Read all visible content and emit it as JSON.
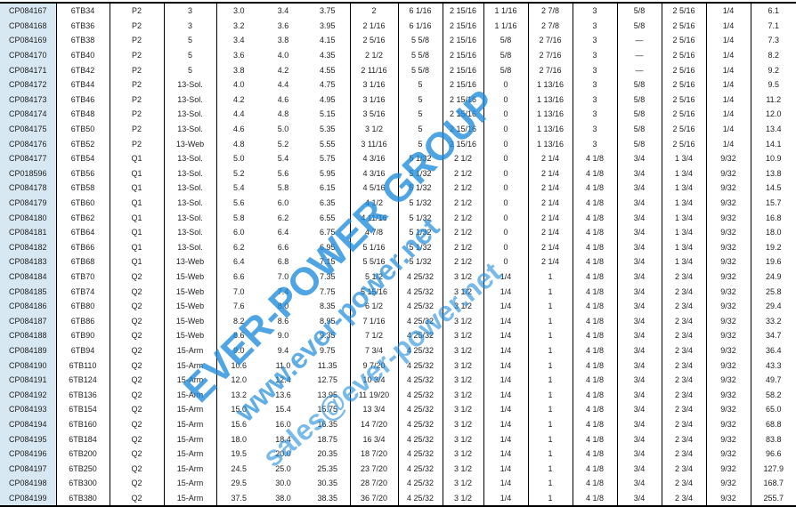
{
  "watermark": {
    "line1": "EVER-POWER GROUP",
    "line2": "www.ever-power.net",
    "line3": "sales@ever-power.net",
    "color": "#1e8cdc"
  },
  "rows": [
    [
      "CP084167",
      "6TB34",
      "P2",
      "3",
      "3.0",
      "3.4",
      "3.75",
      "2",
      "6  1/16",
      "2 15/16",
      "1  1/16",
      "2 7/8",
      "3",
      "5/8",
      "2  5/16",
      "1/4",
      "6.1"
    ],
    [
      "CP084168",
      "6TB36",
      "P2",
      "3",
      "3.2",
      "3.6",
      "3.95",
      "2  1/16",
      "6  1/16",
      "2 15/16",
      "1  1/16",
      "2 7/8",
      "3",
      "5/8",
      "2  5/16",
      "1/4",
      "7.1"
    ],
    [
      "CP084169",
      "6TB38",
      "P2",
      "5",
      "3.4",
      "3.8",
      "4.15",
      "2  5/16",
      "5 5/8",
      "2 15/16",
      "5/8",
      "2  7/16",
      "3",
      "—",
      "2  5/16",
      "1/4",
      "7.3"
    ],
    [
      "CP084170",
      "6TB40",
      "P2",
      "5",
      "3.6",
      "4.0",
      "4.35",
      "2 1/2",
      "5 5/8",
      "2 15/16",
      "5/8",
      "2  7/16",
      "3",
      "—",
      "2  5/16",
      "1/4",
      "8.2"
    ],
    [
      "CP084171",
      "6TB42",
      "P2",
      "5",
      "3.8",
      "4.2",
      "4.55",
      "2 11/16",
      "5 5/8",
      "2 15/16",
      "5/8",
      "2  7/16",
      "3",
      "—",
      "2  5/16",
      "1/4",
      "9.2"
    ],
    [
      "CP084172",
      "6TB44",
      "P2",
      "13-Sol.",
      "4.0",
      "4.4",
      "4.75",
      "3  1/16",
      "5",
      "2 15/16",
      "0",
      "1 13/16",
      "3",
      "5/8",
      "2  5/16",
      "1/4",
      "9.5"
    ],
    [
      "CP084173",
      "6TB46",
      "P2",
      "13-Sol.",
      "4.2",
      "4.6",
      "4.95",
      "3  1/16",
      "5",
      "2 15/16",
      "0",
      "1 13/16",
      "3",
      "5/8",
      "2  5/16",
      "1/4",
      "11.2"
    ],
    [
      "CP084174",
      "6TB48",
      "P2",
      "13-Sol.",
      "4.4",
      "4.8",
      "5.15",
      "3  5/16",
      "5",
      "2 15/16",
      "0",
      "1 13/16",
      "3",
      "5/8",
      "2  5/16",
      "1/4",
      "12.0"
    ],
    [
      "CP084175",
      "6TB50",
      "P2",
      "13-Sol.",
      "4.6",
      "5.0",
      "5.35",
      "3 1/2",
      "5",
      "2 15/16",
      "0",
      "1 13/16",
      "3",
      "5/8",
      "2  5/16",
      "1/4",
      "13.4"
    ],
    [
      "CP084176",
      "6TB52",
      "P2",
      "13-Web",
      "4.8",
      "5.2",
      "5.55",
      "3 11/16",
      "5",
      "2 15/16",
      "0",
      "1 13/16",
      "3",
      "5/8",
      "2  5/16",
      "1/4",
      "14.1"
    ],
    [
      "CP084177",
      "6TB54",
      "Q1",
      "13-Sol.",
      "5.0",
      "5.4",
      "5.75",
      "4  3/16",
      "5  1/32",
      "2 1/2",
      "0",
      "2 1/4",
      "4 1/8",
      "3/4",
      "1 3/4",
      "9/32",
      "10.9"
    ],
    [
      "CP018596",
      "6TB56",
      "Q1",
      "13-Sol.",
      "5.2",
      "5.6",
      "5.95",
      "4  3/16",
      "5  1/32",
      "2 1/2",
      "0",
      "2 1/4",
      "4 1/8",
      "3/4",
      "1 3/4",
      "9/32",
      "13.8"
    ],
    [
      "CP084178",
      "6TB58",
      "Q1",
      "13-Sol.",
      "5.4",
      "5.8",
      "6.15",
      "4  5/16",
      "5  1/32",
      "2 1/2",
      "0",
      "2 1/4",
      "4 1/8",
      "3/4",
      "1 3/4",
      "9/32",
      "14.5"
    ],
    [
      "CP084179",
      "6TB60",
      "Q1",
      "13-Sol.",
      "5.6",
      "6.0",
      "6.35",
      "4 1/2",
      "5  1/32",
      "2 1/2",
      "0",
      "2 1/4",
      "4 1/8",
      "3/4",
      "1 3/4",
      "9/32",
      "15.7"
    ],
    [
      "CP084180",
      "6TB62",
      "Q1",
      "13-Sol.",
      "5.8",
      "6.2",
      "6.55",
      "4 11/16",
      "5  1/32",
      "2 1/2",
      "0",
      "2 1/4",
      "4 1/8",
      "3/4",
      "1 3/4",
      "9/32",
      "16.8"
    ],
    [
      "CP084181",
      "6TB64",
      "Q1",
      "13-Sol.",
      "6.0",
      "6.4",
      "6.75",
      "4  7/8",
      "5  1/32",
      "2 1/2",
      "0",
      "2 1/4",
      "4 1/8",
      "3/4",
      "1 3/4",
      "9/32",
      "18.0"
    ],
    [
      "CP084182",
      "6TB66",
      "Q1",
      "13-Sol.",
      "6.2",
      "6.6",
      "6.95",
      "5  1/16",
      "5  1/32",
      "2 1/2",
      "0",
      "2 1/4",
      "4 1/8",
      "3/4",
      "1 3/4",
      "9/32",
      "19.2"
    ],
    [
      "CP084183",
      "6TB68",
      "Q1",
      "13-Web",
      "6.4",
      "6.8",
      "7.15",
      "5  5/16",
      "5  1/32",
      "2 1/2",
      "0",
      "2 1/4",
      "4 1/8",
      "3/4",
      "1 3/4",
      "9/32",
      "19.6"
    ],
    [
      "CP084184",
      "6TB70",
      "Q2",
      "15-Web",
      "6.6",
      "7.0",
      "7.35",
      "5 1/2",
      "4 25/32",
      "3 1/2",
      "1/4",
      "1",
      "4 1/8",
      "3/4",
      "2 3/4",
      "9/32",
      "24.9"
    ],
    [
      "CP084185",
      "6TB74",
      "Q2",
      "15-Web",
      "7.0",
      "7.4",
      "7.75",
      "5 15/16",
      "4 25/32",
      "3 1/2",
      "1/4",
      "1",
      "4 1/8",
      "3/4",
      "2 3/4",
      "9/32",
      "25.8"
    ],
    [
      "CP084186",
      "6TB80",
      "Q2",
      "15-Web",
      "7.6",
      "8.0",
      "8.35",
      "6 1/2",
      "4 25/32",
      "3 1/2",
      "1/4",
      "1",
      "4 1/8",
      "3/4",
      "2 3/4",
      "9/32",
      "29.4"
    ],
    [
      "CP084187",
      "6TB86",
      "Q2",
      "15-Web",
      "8.2",
      "8.6",
      "8.95",
      "7  1/16",
      "4 25/32",
      "3 1/2",
      "1/4",
      "1",
      "4 1/8",
      "3/4",
      "2 3/4",
      "9/32",
      "33.2"
    ],
    [
      "CP084188",
      "6TB90",
      "Q2",
      "15-Web",
      "8.6",
      "9.0",
      "9.35",
      "7 1/2",
      "4 25/32",
      "3 1/2",
      "1/4",
      "1",
      "4 1/8",
      "3/4",
      "2 3/4",
      "9/32",
      "34.7"
    ],
    [
      "CP084189",
      "6TB94",
      "Q2",
      "15-Arm",
      "9.0",
      "9.4",
      "9.75",
      "7  3/4",
      "4 25/32",
      "3 1/2",
      "1/4",
      "1",
      "4 1/8",
      "3/4",
      "2 3/4",
      "9/32",
      "36.4"
    ],
    [
      "CP084190",
      "6TB110",
      "Q2",
      "15-Arm",
      "10.6",
      "11.0",
      "11.35",
      "9  7/20",
      "4 25/32",
      "3 1/2",
      "1/4",
      "1",
      "4 1/8",
      "3/4",
      "2 3/4",
      "9/32",
      "43.3"
    ],
    [
      "CP084191",
      "6TB124",
      "Q2",
      "15-Arm",
      "12.0",
      "12.4",
      "12.75",
      "10  3/4",
      "4 25/32",
      "3 1/2",
      "1/4",
      "1",
      "4 1/8",
      "3/4",
      "2 3/4",
      "9/32",
      "49.7"
    ],
    [
      "CP084192",
      "6TB136",
      "Q2",
      "15-Arm",
      "13.2",
      "13.6",
      "13.95",
      "11 19/20",
      "4 25/32",
      "3 1/2",
      "1/4",
      "1",
      "4 1/8",
      "3/4",
      "2 3/4",
      "9/32",
      "58.2"
    ],
    [
      "CP084193",
      "6TB154",
      "Q2",
      "15-Arm",
      "15.0",
      "15.4",
      "15.75",
      "13  3/4",
      "4 25/32",
      "3 1/2",
      "1/4",
      "1",
      "4 1/8",
      "3/4",
      "2 3/4",
      "9/32",
      "65.0"
    ],
    [
      "CP084194",
      "6TB160",
      "Q2",
      "15-Arm",
      "15.6",
      "16.0",
      "16.35",
      "14  7/20",
      "4 25/32",
      "3 1/2",
      "1/4",
      "1",
      "4 1/8",
      "3/4",
      "2 3/4",
      "9/32",
      "68.8"
    ],
    [
      "CP084195",
      "6TB184",
      "Q2",
      "15-Arm",
      "18.0",
      "18.4",
      "18.75",
      "16  3/4",
      "4 25/32",
      "3 1/2",
      "1/4",
      "1",
      "4 1/8",
      "3/4",
      "2 3/4",
      "9/32",
      "83.8"
    ],
    [
      "CP084196",
      "6TB200",
      "Q2",
      "15-Arm",
      "19.5",
      "20.0",
      "20.35",
      "18  7/20",
      "4 25/32",
      "3 1/2",
      "1/4",
      "1",
      "4 1/8",
      "3/4",
      "2 3/4",
      "9/32",
      "96.6"
    ],
    [
      "CP084197",
      "6TB250",
      "Q2",
      "15-Arm",
      "24.5",
      "25.0",
      "25.35",
      "23  7/20",
      "4 25/32",
      "3 1/2",
      "1/4",
      "1",
      "4 1/8",
      "3/4",
      "2 3/4",
      "9/32",
      "127.9"
    ],
    [
      "CP084198",
      "6TB300",
      "Q2",
      "15-Arm",
      "29.5",
      "30.0",
      "30.35",
      "28  7/20",
      "4 25/32",
      "3 1/2",
      "1/4",
      "1",
      "4 1/8",
      "3/4",
      "2 3/4",
      "9/32",
      "168.7"
    ],
    [
      "CP084199",
      "6TB380",
      "Q2",
      "15-Arm",
      "37.5",
      "38.0",
      "38.35",
      "36  7/20",
      "4 25/32",
      "3 1/2",
      "1/4",
      "1",
      "4 1/8",
      "3/4",
      "2 3/4",
      "9/32",
      "255.7"
    ]
  ]
}
